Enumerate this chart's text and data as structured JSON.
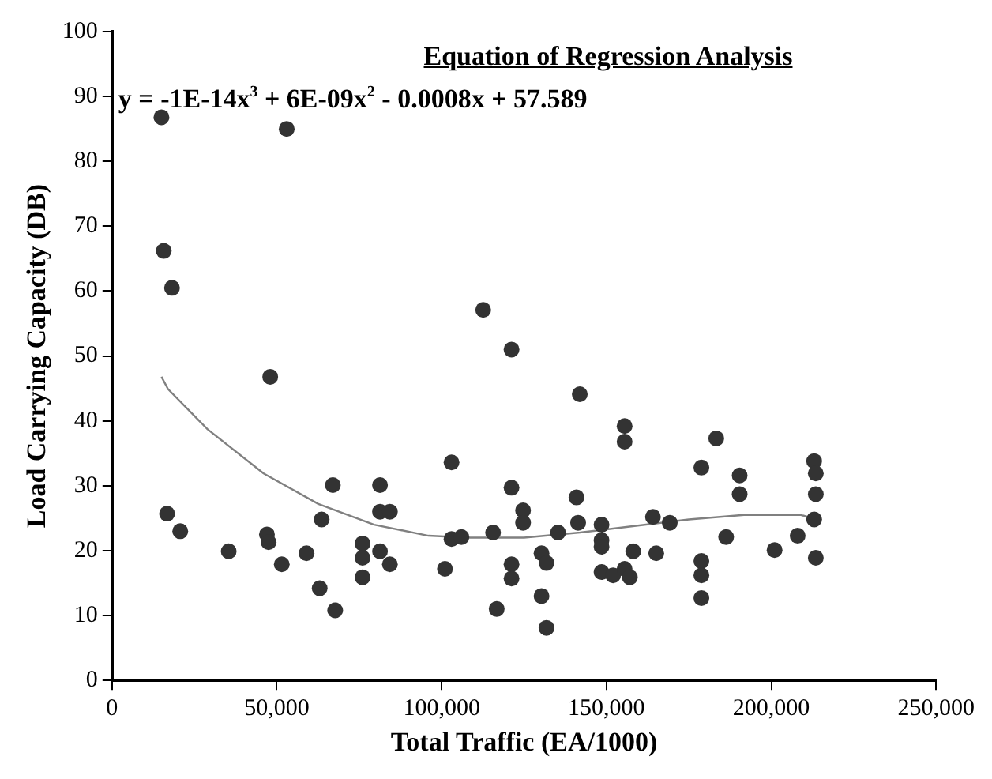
{
  "chart_data": {
    "type": "scatter",
    "title": "Equation of Regression Analysis",
    "xlabel": "Total Traffic (EA/1000)",
    "ylabel": "Load Carrying Capacity (DB)",
    "annotations": [
      "y = -1E-14x$^{3}$ + 6E-09x$^{2}$ - 0.0008x + 57.589"
    ],
    "xlim": [
      0,
      250000
    ],
    "ylim": [
      0,
      100
    ],
    "xticks": [
      0,
      {
        "value": 50000,
        "label": "50,000"
      },
      {
        "value": 100000,
        "label": "100,000"
      },
      {
        "value": 150000,
        "label": "150,000"
      },
      {
        "value": 200000,
        "label": "200,000"
      },
      {
        "value": 250000,
        "label": "250,000"
      }
    ],
    "yticks": [
      0,
      10,
      20,
      30,
      40,
      50,
      60,
      70,
      80,
      90,
      100
    ],
    "grid": false,
    "legend": false,
    "marker": "circle",
    "series": [
      {
        "color": "#333333",
        "x": [
          15000,
          53000,
          15700,
          18200,
          48000,
          16700,
          20700,
          35400,
          47000,
          47500,
          51500,
          59000,
          63000,
          63600,
          67000,
          67700,
          76000,
          76000,
          76000,
          81300,
          81300,
          84300,
          81300,
          84300,
          112600,
          121200,
          141900,
          155500,
          155500,
          183300,
          178800,
          190400,
          190400,
          103000,
          121200,
          124700,
          124700,
          103000,
          106000,
          115600,
          101000,
          121200,
          121200,
          116700,
          130300,
          131800,
          130300,
          131800,
          135300,
          140900,
          141400,
          148500,
          148500,
          148500,
          148500,
          152000,
          155500,
          157100,
          158100,
          164100,
          165100,
          169200,
          186300,
          178800,
          178800,
          178800,
          213000,
          213500,
          213500,
          213000,
          213500,
          208000,
          201000
        ],
        "values": [
          86.8,
          85,
          66.2,
          60.5,
          46.8,
          25.7,
          23,
          19.9,
          22.5,
          21.3,
          17.9,
          19.6,
          14.2,
          24.8,
          30.1,
          10.8,
          21.1,
          18.9,
          15.9,
          30.1,
          26,
          26,
          19.9,
          17.9,
          57.1,
          51,
          44.1,
          39.2,
          36.8,
          37.3,
          32.8,
          31.6,
          28.7,
          33.6,
          29.7,
          26.2,
          24.3,
          21.8,
          22.1,
          22.8,
          17.2,
          17.9,
          15.7,
          11,
          19.6,
          18.1,
          13,
          8.1,
          22.8,
          28.2,
          24.3,
          24,
          21.6,
          20.6,
          16.7,
          16.2,
          17.2,
          15.9,
          19.9,
          25.2,
          19.6,
          24.3,
          22.1,
          18.4,
          16.2,
          12.7,
          33.8,
          31.9,
          28.7,
          24.8,
          18.9,
          22.3,
          20.1
        ]
      },
      {
        "type": "line",
        "color": "#808080",
        "marker": "none",
        "x": [
          15000,
          17000,
          29000,
          46000,
          62600,
          79500,
          96000,
          108000,
          125000,
          142000,
          158500,
          175000,
          191700,
          209000,
          212500
        ],
        "values": [
          46.8,
          44.9,
          38.7,
          31.9,
          27.2,
          24,
          22.3,
          22,
          22,
          22.8,
          23.8,
          24.8,
          25.5,
          25.5,
          25
        ]
      }
    ]
  }
}
